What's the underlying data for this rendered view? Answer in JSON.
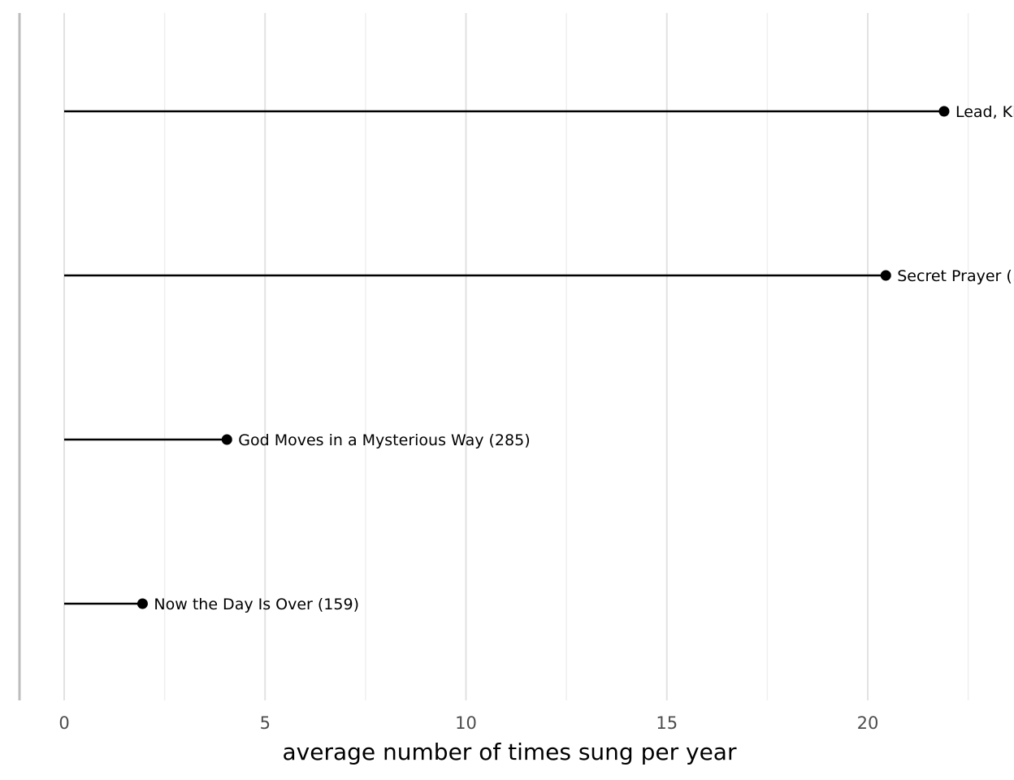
{
  "chart_data": {
    "type": "lollipop",
    "orientation": "horizontal",
    "xlabel": "average number of times sung per year",
    "ylabel": "",
    "xlim": [
      -1.1,
      23.1
    ],
    "xticks": [
      0,
      5,
      10,
      15,
      20
    ],
    "grid": "vertical major and minor",
    "series": [
      {
        "label": "Lead, Kindly Light (…)",
        "value": 21.9
      },
      {
        "label": "Secret Prayer (…)",
        "value": 20.45
      },
      {
        "label": "God Moves in a Mysterious Way (285)",
        "value": 4.05
      },
      {
        "label": "Now the Day Is Over (159)",
        "value": 1.95
      }
    ],
    "colors": {
      "stem": "#000000",
      "point": "#000000",
      "left_axis": "#bdbdbd"
    }
  }
}
